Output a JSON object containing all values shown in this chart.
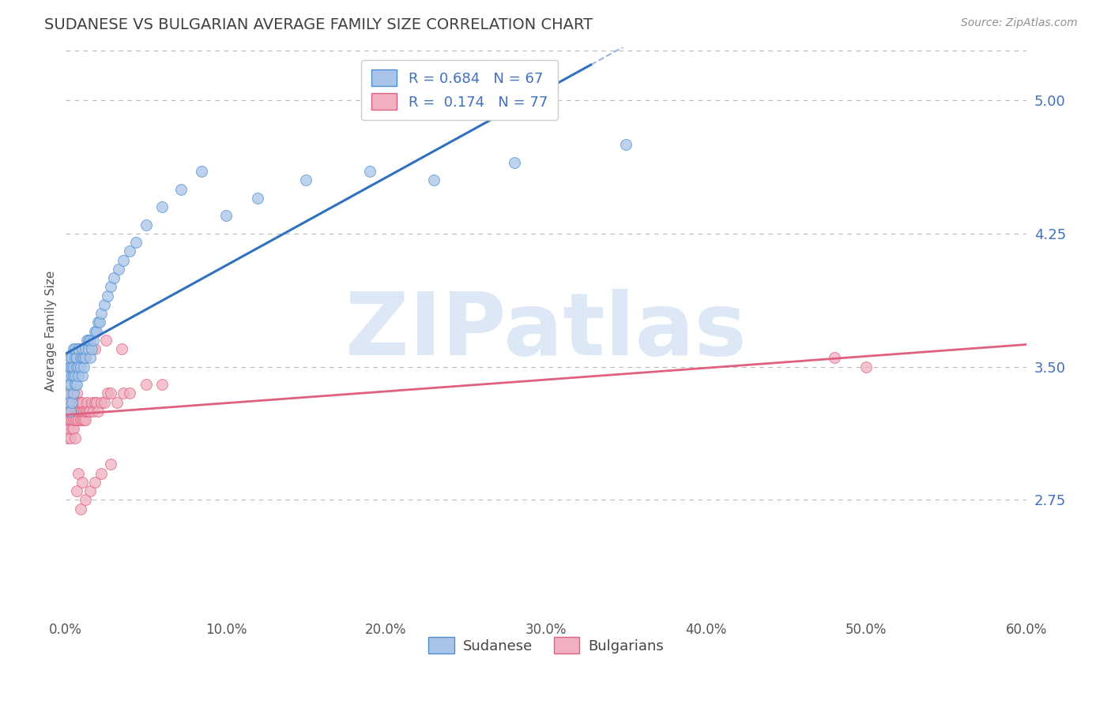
{
  "title": "SUDANESE VS BULGARIAN AVERAGE FAMILY SIZE CORRELATION CHART",
  "source_text": "Source: ZipAtlas.com",
  "ylabel": "Average Family Size",
  "xlim": [
    0.0,
    0.6
  ],
  "ylim": [
    2.1,
    5.3
  ],
  "yticks": [
    2.75,
    3.5,
    4.25,
    5.0
  ],
  "xtick_labels": [
    "0.0%",
    "10.0%",
    "20.0%",
    "30.0%",
    "40.0%",
    "50.0%",
    "60.0%"
  ],
  "xtick_values": [
    0.0,
    0.1,
    0.2,
    0.3,
    0.4,
    0.5,
    0.6
  ],
  "legend_r1": "R = 0.684",
  "legend_n1": "N = 67",
  "legend_r2": "R =  0.174",
  "legend_n2": "N = 77",
  "color_sudanese_fill": "#a8c4e8",
  "color_sudanese_edge": "#5090d0",
  "color_bulgarians_fill": "#f0b0c0",
  "color_bulgarians_edge": "#e06080",
  "color_line_sudanese": "#3070c0",
  "color_line_bulgarians": "#e06080",
  "color_title": "#404040",
  "color_axis_right": "#4070c0",
  "color_source": "#909090",
  "background_color": "#ffffff",
  "grid_color": "#b8b8b8",
  "title_fontsize": 14,
  "axis_label_fontsize": 11,
  "tick_fontsize": 12,
  "watermark_text": "ZIPatlas",
  "watermark_color": "#dce8f5",
  "watermark_fontsize": 80,
  "sudanese_x": [
    0.001,
    0.001,
    0.002,
    0.002,
    0.002,
    0.003,
    0.003,
    0.003,
    0.003,
    0.004,
    0.004,
    0.004,
    0.004,
    0.005,
    0.005,
    0.005,
    0.005,
    0.006,
    0.006,
    0.006,
    0.006,
    0.007,
    0.007,
    0.007,
    0.008,
    0.008,
    0.008,
    0.009,
    0.009,
    0.01,
    0.01,
    0.01,
    0.011,
    0.011,
    0.012,
    0.012,
    0.013,
    0.014,
    0.014,
    0.015,
    0.015,
    0.016,
    0.017,
    0.018,
    0.019,
    0.02,
    0.021,
    0.022,
    0.024,
    0.026,
    0.028,
    0.03,
    0.033,
    0.036,
    0.04,
    0.044,
    0.05,
    0.06,
    0.072,
    0.085,
    0.1,
    0.12,
    0.15,
    0.19,
    0.23,
    0.28,
    0.35
  ],
  "sudanese_y": [
    3.35,
    3.4,
    3.3,
    3.45,
    3.5,
    3.25,
    3.4,
    3.5,
    3.55,
    3.3,
    3.45,
    3.5,
    3.55,
    3.35,
    3.45,
    3.5,
    3.6,
    3.4,
    3.45,
    3.55,
    3.6,
    3.4,
    3.5,
    3.55,
    3.45,
    3.5,
    3.6,
    3.5,
    3.55,
    3.45,
    3.55,
    3.6,
    3.5,
    3.55,
    3.55,
    3.6,
    3.65,
    3.6,
    3.65,
    3.55,
    3.65,
    3.6,
    3.65,
    3.7,
    3.7,
    3.75,
    3.75,
    3.8,
    3.85,
    3.9,
    3.95,
    4.0,
    4.05,
    4.1,
    4.15,
    4.2,
    4.3,
    4.4,
    4.5,
    4.6,
    4.35,
    4.45,
    4.55,
    4.6,
    4.55,
    4.65,
    4.75
  ],
  "bulgarians_x": [
    0.001,
    0.001,
    0.001,
    0.002,
    0.002,
    0.002,
    0.002,
    0.003,
    0.003,
    0.003,
    0.003,
    0.003,
    0.004,
    0.004,
    0.004,
    0.004,
    0.005,
    0.005,
    0.005,
    0.005,
    0.006,
    0.006,
    0.006,
    0.006,
    0.007,
    0.007,
    0.007,
    0.007,
    0.008,
    0.008,
    0.008,
    0.009,
    0.009,
    0.009,
    0.01,
    0.01,
    0.01,
    0.011,
    0.011,
    0.012,
    0.012,
    0.013,
    0.013,
    0.014,
    0.015,
    0.016,
    0.017,
    0.018,
    0.019,
    0.02,
    0.022,
    0.024,
    0.026,
    0.028,
    0.032,
    0.036,
    0.04,
    0.05,
    0.06,
    0.007,
    0.008,
    0.009,
    0.01,
    0.012,
    0.015,
    0.018,
    0.022,
    0.028,
    0.005,
    0.006,
    0.008,
    0.012,
    0.018,
    0.025,
    0.035,
    0.48,
    0.5
  ],
  "bulgarians_y": [
    3.2,
    3.3,
    3.1,
    3.15,
    3.2,
    3.25,
    3.3,
    3.1,
    3.2,
    3.25,
    3.3,
    3.35,
    3.15,
    3.2,
    3.25,
    3.35,
    3.15,
    3.2,
    3.3,
    3.35,
    3.2,
    3.25,
    3.3,
    3.1,
    3.2,
    3.25,
    3.3,
    3.35,
    3.2,
    3.25,
    3.3,
    3.2,
    3.25,
    3.3,
    3.2,
    3.25,
    3.3,
    3.2,
    3.25,
    3.2,
    3.25,
    3.25,
    3.3,
    3.25,
    3.25,
    3.3,
    3.25,
    3.3,
    3.3,
    3.25,
    3.3,
    3.3,
    3.35,
    3.35,
    3.3,
    3.35,
    3.35,
    3.4,
    3.4,
    2.8,
    2.9,
    2.7,
    2.85,
    2.75,
    2.8,
    2.85,
    2.9,
    2.95,
    3.5,
    3.55,
    3.6,
    3.55,
    3.6,
    3.65,
    3.6,
    3.55,
    3.5
  ]
}
